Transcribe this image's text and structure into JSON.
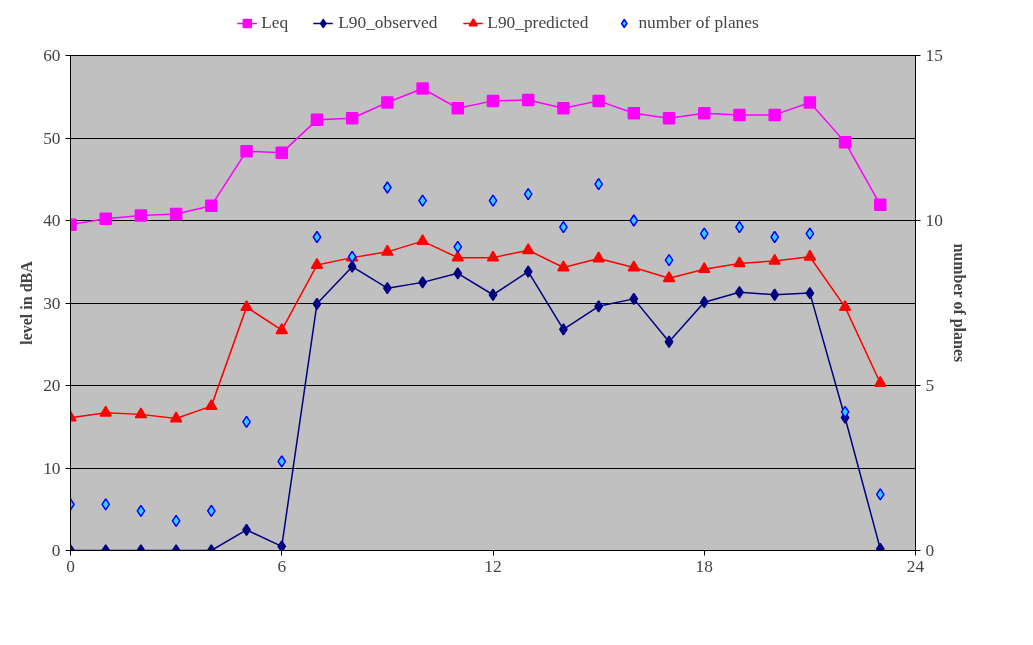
{
  "chart_data": {
    "type": "line",
    "xlabel": null,
    "ylabel": "level in dBA",
    "y2label": "number of planes",
    "x": [
      0,
      1,
      2,
      3,
      4,
      5,
      6,
      7,
      8,
      9,
      10,
      11,
      12,
      13,
      14,
      15,
      16,
      17,
      18,
      19,
      20,
      21,
      22,
      23
    ],
    "xlim": [
      0,
      24
    ],
    "xticks": [
      0,
      6,
      12,
      18,
      24
    ],
    "ylim": [
      0,
      60
    ],
    "yticks": [
      0,
      10,
      20,
      30,
      40,
      50,
      60
    ],
    "y2lim": [
      0,
      15
    ],
    "y2ticks": [
      0,
      5,
      10,
      15
    ],
    "grid": "y",
    "legend": "top",
    "series": [
      {
        "name": "Leq",
        "color": "#ff00ff",
        "marker": "square",
        "values": [
          39.5,
          40.2,
          40.6,
          40.8,
          41.8,
          48.4,
          48.2,
          52.2,
          52.4,
          54.3,
          56.0,
          53.6,
          54.5,
          54.6,
          53.6,
          54.5,
          53.0,
          52.4,
          53.0,
          52.8,
          52.8,
          54.3,
          49.5,
          41.9
        ]
      },
      {
        "name": "L90_observed",
        "color": "#000080",
        "marker": "diamond",
        "values": [
          0,
          0,
          0,
          0,
          0,
          2.5,
          0.5,
          29.9,
          34.4,
          31.8,
          32.5,
          33.6,
          31.0,
          33.8,
          26.8,
          29.6,
          30.5,
          25.3,
          30.1,
          31.3,
          31.0,
          31.2,
          16.1,
          0.2
        ]
      },
      {
        "name": "L90_predicted",
        "color": "#ff0000",
        "marker": "triangle",
        "values": [
          16.1,
          16.7,
          16.5,
          16.0,
          17.5,
          29.5,
          26.7,
          34.6,
          35.5,
          36.2,
          37.5,
          35.5,
          35.5,
          36.4,
          34.3,
          35.4,
          34.3,
          33.0,
          34.1,
          34.8,
          35.1,
          35.6,
          29.5,
          20.3
        ]
      },
      {
        "name": "number of planes",
        "type": "scatter",
        "axis": "y2",
        "color": "#33ccff",
        "marker": "diamond",
        "values": [
          1.4,
          1.4,
          1.2,
          0.9,
          1.2,
          3.9,
          2.7,
          9.5,
          8.9,
          11.0,
          10.6,
          9.2,
          10.6,
          10.8,
          9.8,
          11.1,
          10.0,
          8.8,
          9.6,
          9.8,
          9.5,
          9.6,
          4.2,
          1.7
        ]
      }
    ]
  }
}
